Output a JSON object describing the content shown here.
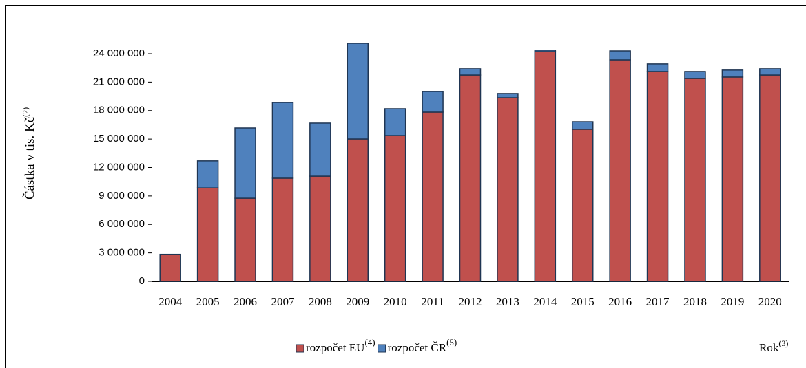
{
  "chart_data": {
    "type": "stacked_bar",
    "y_label": "Částka v tis. Kč",
    "y_label_superscript": "(2)",
    "x_label": "Rok",
    "x_label_superscript": "(3)",
    "categories": [
      "2004",
      "2005",
      "2006",
      "2007",
      "2008",
      "2009",
      "2010",
      "2011",
      "2012",
      "2013",
      "2014",
      "2015",
      "2016",
      "2017",
      "2018",
      "2019",
      "2020"
    ],
    "series": [
      {
        "name": "rozpočet EU",
        "name_superscript": "(4)",
        "color": "#c0504d",
        "values": [
          2850000,
          9850000,
          8770000,
          10880000,
          11090000,
          15010000,
          15370000,
          17840000,
          21750000,
          19360000,
          24220000,
          16030000,
          23350000,
          22120000,
          21390000,
          21540000,
          21750000
        ]
      },
      {
        "name": "rozpočet ČR",
        "name_superscript": "(5)",
        "color": "#4f81bd",
        "values": [
          0,
          2850000,
          7400000,
          7970000,
          5590000,
          10080000,
          2830000,
          2170000,
          660000,
          440000,
          150000,
          790000,
          940000,
          800000,
          730000,
          730000,
          660000
        ]
      }
    ],
    "ylim": [
      0,
      24000000
    ],
    "yticks": [
      0,
      {
        "value": 3000000,
        "label": "3 000 000"
      },
      {
        "value": 6000000,
        "label": "6 000 000"
      },
      {
        "value": 9000000,
        "label": "9 000 000"
      },
      {
        "value": 12000000,
        "label": "12 000 000"
      },
      {
        "value": 15000000,
        "label": "15 000 000"
      },
      {
        "value": 18000000,
        "label": "18 000 000"
      },
      {
        "value": 21000000,
        "label": "21 000 000"
      },
      {
        "value": 24000000,
        "label": "24 000 000"
      }
    ],
    "grid": false
  }
}
